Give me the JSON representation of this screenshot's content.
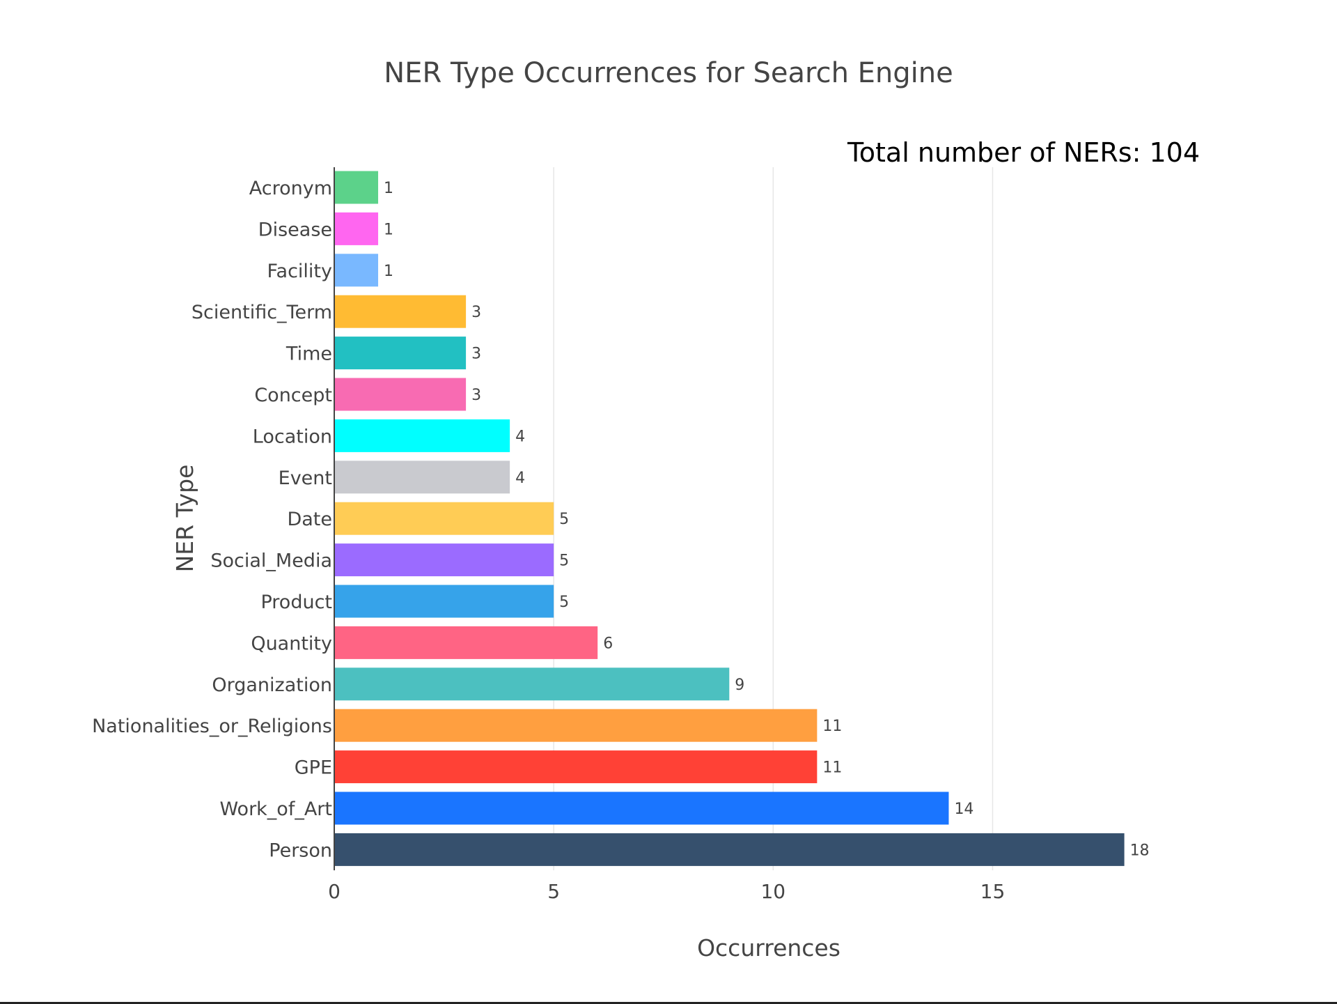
{
  "chart_data": {
    "type": "bar",
    "orientation": "horizontal",
    "title": "NER Type Occurrences for Search Engine",
    "annotation": "Total number of NERs: 104",
    "xlabel": "Occurrences",
    "ylabel": "NER Type",
    "xlim": [
      0,
      18.8
    ],
    "xticks": [
      0,
      5,
      10,
      15
    ],
    "grid": true,
    "legend": "none",
    "categories": [
      "Acronym",
      "Disease",
      "Facility",
      "Scientific_Term",
      "Time",
      "Concept",
      "Location",
      "Event",
      "Date",
      "Social_Media",
      "Product",
      "Quantity",
      "Organization",
      "Nationalities_or_Religions",
      "GPE",
      "Work_of_Art",
      "Person"
    ],
    "values": [
      1,
      1,
      1,
      3,
      3,
      3,
      4,
      4,
      5,
      5,
      5,
      6,
      9,
      11,
      11,
      14,
      18
    ],
    "colors": [
      "#5cd28a",
      "#ff66f0",
      "#79b8ff",
      "#ffbb33",
      "#22c0c2",
      "#f86bb2",
      "#00ffff",
      "#c9cacf",
      "#ffcc55",
      "#9b6bff",
      "#36a3ea",
      "#ff6484",
      "#4cc0c0",
      "#ff9f40",
      "#ff4136",
      "#1a75ff",
      "#36506d"
    ]
  }
}
